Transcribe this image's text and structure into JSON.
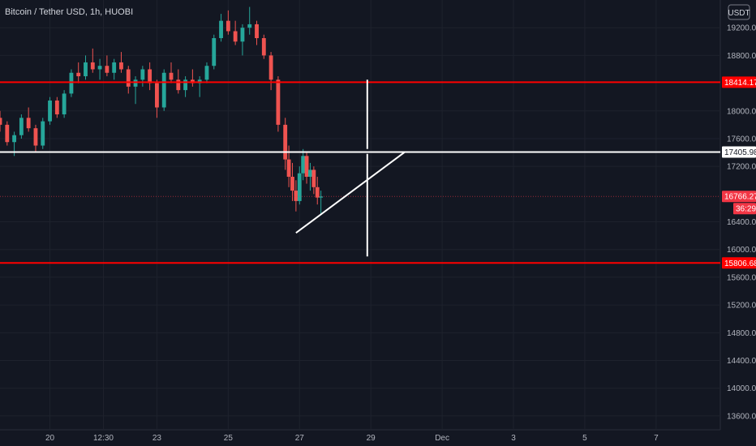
{
  "header": {
    "symbol_title": "Bitcoin / Tether USD, 1h, HUOBI",
    "currency": "USDT"
  },
  "chart_data": {
    "type": "candlestick",
    "title": "Bitcoin / Tether USD, 1h, HUOBI",
    "y_axis": {
      "ticks": [
        "19200.00",
        "18800.00",
        "18000.00",
        "17600.00",
        "17200.00",
        "16400.00",
        "16000.00",
        "15600.00",
        "15200.00",
        "14800.00",
        "14400.00",
        "14000.00",
        "13600.00"
      ],
      "tick_values": [
        19200,
        18800,
        18000,
        17600,
        17200,
        16400,
        16000,
        15600,
        15200,
        14800,
        14400,
        14000,
        13600
      ],
      "range": [
        13400,
        19600
      ]
    },
    "x_axis": {
      "ticks": [
        "20",
        "12:30",
        "23",
        "25",
        "27",
        "29",
        "Dec",
        "3",
        "5",
        "7"
      ],
      "tick_days": [
        20,
        21.5,
        23,
        25,
        27,
        29,
        31,
        33,
        35,
        37
      ],
      "range_days": [
        18.6,
        38.8
      ]
    },
    "levels": [
      {
        "label": "18414.17",
        "value": 18414.17,
        "color": "#ff0000"
      },
      {
        "label": "17405.98",
        "value": 17405.98,
        "color": "#ffffff"
      },
      {
        "label": "15806.68",
        "value": 15806.68,
        "color": "#ff0000"
      }
    ],
    "current_price": {
      "label": "16766.27",
      "value": 16766.27,
      "countdown": "36:29",
      "color": "#f23645"
    },
    "drawings": [
      {
        "kind": "trendline",
        "from": {
          "day": 26.9,
          "price": 16240
        },
        "to": {
          "day": 29.95,
          "price": 17405.98
        },
        "color": "#ffffff"
      },
      {
        "kind": "vertical",
        "day": 28.9,
        "from_price": 18450,
        "to_price": 17450,
        "color": "#ffffff"
      },
      {
        "kind": "vertical",
        "day": 28.9,
        "from_price": 17380,
        "to_price": 15900,
        "color": "#ffffff"
      }
    ],
    "candles": [
      [
        18.6,
        17900,
        18000,
        17700,
        17800
      ],
      [
        18.8,
        17800,
        17850,
        17500,
        17550
      ],
      [
        19.0,
        17550,
        17700,
        17350,
        17650
      ],
      [
        19.2,
        17650,
        17950,
        17600,
        17900
      ],
      [
        19.4,
        17900,
        18050,
        17700,
        17750
      ],
      [
        19.6,
        17750,
        17800,
        17400,
        17500
      ],
      [
        19.8,
        17500,
        17900,
        17450,
        17850
      ],
      [
        20.0,
        17850,
        18200,
        17800,
        18150
      ],
      [
        20.2,
        18150,
        18200,
        17900,
        17950
      ],
      [
        20.4,
        17950,
        18300,
        17900,
        18250
      ],
      [
        20.6,
        18250,
        18600,
        18200,
        18550
      ],
      [
        20.8,
        18550,
        18700,
        18400,
        18500
      ],
      [
        21.0,
        18500,
        18800,
        18450,
        18700
      ],
      [
        21.2,
        18700,
        18900,
        18550,
        18600
      ],
      [
        21.4,
        18600,
        18750,
        18450,
        18650
      ],
      [
        21.6,
        18650,
        18800,
        18500,
        18550
      ],
      [
        21.8,
        18550,
        18750,
        18450,
        18700
      ],
      [
        22.0,
        18700,
        18850,
        18550,
        18600
      ],
      [
        22.2,
        18600,
        18650,
        18250,
        18350
      ],
      [
        22.4,
        18350,
        18500,
        18100,
        18450
      ],
      [
        22.6,
        18450,
        18650,
        18350,
        18600
      ],
      [
        22.8,
        18600,
        18700,
        18300,
        18400
      ],
      [
        23.0,
        18400,
        18450,
        17900,
        18050
      ],
      [
        23.2,
        18050,
        18600,
        18000,
        18550
      ],
      [
        23.4,
        18550,
        18700,
        18400,
        18450
      ],
      [
        23.6,
        18450,
        18600,
        18250,
        18300
      ],
      [
        23.8,
        18300,
        18500,
        18200,
        18450
      ],
      [
        24.0,
        18450,
        18600,
        18350,
        18400
      ],
      [
        24.2,
        18400,
        18500,
        18200,
        18450
      ],
      [
        24.4,
        18450,
        18700,
        18400,
        18650
      ],
      [
        24.6,
        18650,
        19100,
        18600,
        19050
      ],
      [
        24.8,
        19050,
        19400,
        19000,
        19300
      ],
      [
        25.0,
        19300,
        19450,
        19100,
        19150
      ],
      [
        25.2,
        19150,
        19300,
        18950,
        19000
      ],
      [
        25.4,
        19000,
        19250,
        18800,
        19200
      ],
      [
        25.6,
        19200,
        19500,
        19100,
        19250
      ],
      [
        25.8,
        19250,
        19300,
        18950,
        19050
      ],
      [
        26.0,
        19050,
        19100,
        18750,
        18800
      ],
      [
        26.2,
        18800,
        18850,
        18300,
        18450
      ],
      [
        26.4,
        18450,
        18500,
        17700,
        17800
      ],
      [
        26.6,
        17800,
        17900,
        17150,
        17300
      ],
      [
        26.7,
        17300,
        17500,
        16900,
        17050
      ],
      [
        26.8,
        17050,
        17250,
        16700,
        16850
      ],
      [
        26.9,
        16850,
        17000,
        16550,
        16700
      ],
      [
        27.0,
        16700,
        17200,
        16650,
        17100
      ],
      [
        27.1,
        17100,
        17450,
        17000,
        17350
      ],
      [
        27.2,
        17350,
        17400,
        16950,
        17050
      ],
      [
        27.3,
        17050,
        17250,
        16850,
        17150
      ],
      [
        27.4,
        17150,
        17200,
        16800,
        16900
      ],
      [
        27.5,
        16900,
        17050,
        16650,
        16750
      ],
      [
        27.6,
        16750,
        16850,
        16500,
        16766
      ]
    ]
  }
}
